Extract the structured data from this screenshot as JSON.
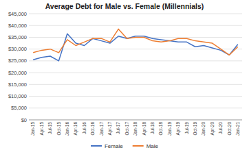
{
  "chart_data": {
    "type": "line",
    "title": "Average Debt for Male vs. Female (Millennials)",
    "categories": [
      "Jan-15",
      "Apr-15",
      "Jul-15",
      "Oct-15",
      "Jan-16",
      "Apr-16",
      "Jul-16",
      "Oct-16",
      "Jan-17",
      "Apr-17",
      "Jul-17",
      "Oct-17",
      "Jan-18",
      "Apr-18",
      "Jul-18",
      "Oct-18",
      "Jan-19",
      "Apr-19",
      "Jul-19",
      "Oct-19",
      "Jan-20",
      "Apr-20",
      "Jul-20",
      "Oct-20",
      "Jan-21"
    ],
    "series": [
      {
        "name": "Female",
        "color": "#4472C4",
        "values": [
          25500,
          26500,
          27000,
          25000,
          36500,
          32500,
          31500,
          34500,
          33500,
          32500,
          35500,
          34500,
          35500,
          35500,
          34500,
          34000,
          33500,
          33000,
          33000,
          31000,
          31500,
          30500,
          29500,
          27500,
          32000
        ]
      },
      {
        "name": "Male",
        "color": "#ED7D31",
        "values": [
          28500,
          29500,
          30000,
          28500,
          34000,
          31500,
          33000,
          34500,
          34500,
          33000,
          38500,
          34500,
          35000,
          35000,
          33500,
          33000,
          33500,
          34500,
          34500,
          33500,
          33000,
          32500,
          30000,
          27500,
          31000
        ]
      }
    ],
    "ylim": [
      0,
      45000
    ],
    "yticks": [
      {
        "value": 0,
        "label": "$0"
      },
      {
        "value": 5000,
        "label": "$5,000"
      },
      {
        "value": 10000,
        "label": "$10,000"
      },
      {
        "value": 15000,
        "label": "$15,000"
      },
      {
        "value": 20000,
        "label": "$20,000"
      },
      {
        "value": 25000,
        "label": "$25,000"
      },
      {
        "value": 30000,
        "label": "$30,000"
      },
      {
        "value": 35000,
        "label": "$35,000"
      },
      {
        "value": 40000,
        "label": "$40,000"
      },
      {
        "value": 45000,
        "label": "$45,000"
      }
    ],
    "grid": true,
    "legend": "bottom"
  }
}
